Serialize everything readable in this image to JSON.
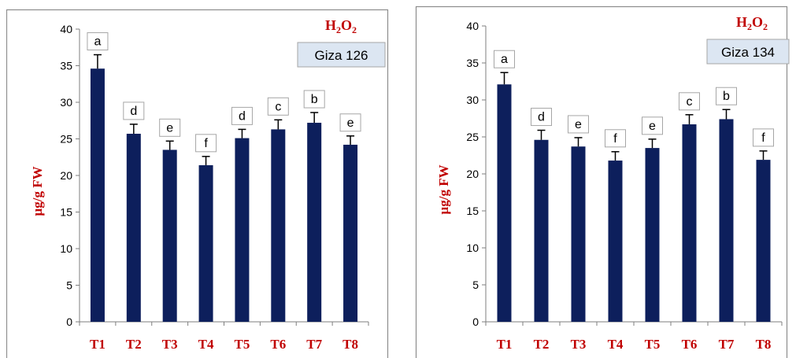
{
  "colors": {
    "bar": "#0d1f5c",
    "accent": "#c00000",
    "badge_bg": "#dce6f2"
  },
  "chart_data": [
    {
      "type": "bar",
      "title": "H2O2",
      "subtitle": "Giza 126",
      "ylabel": "µg/g FW",
      "xlabel": "",
      "ylim": [
        0,
        40
      ],
      "yticks": [
        0,
        5,
        10,
        15,
        20,
        25,
        30,
        35,
        40
      ],
      "categories": [
        "T1",
        "T2",
        "T3",
        "T4",
        "T5",
        "T6",
        "T7",
        "T8"
      ],
      "values": [
        34.6,
        25.7,
        23.5,
        21.4,
        25.1,
        26.3,
        27.2,
        24.2
      ],
      "errors": [
        1.9,
        1.3,
        1.2,
        1.2,
        1.2,
        1.3,
        1.4,
        1.2
      ],
      "letters": [
        "a",
        "d",
        "e",
        "f",
        "d",
        "c",
        "b",
        "e"
      ]
    },
    {
      "type": "bar",
      "title": "H2O2",
      "subtitle": "Giza 134",
      "ylabel": "µg/g FW",
      "xlabel": "",
      "ylim": [
        0,
        40
      ],
      "yticks": [
        0,
        5,
        10,
        15,
        20,
        25,
        30,
        35,
        40
      ],
      "categories": [
        "T1",
        "T2",
        "T3",
        "T4",
        "T5",
        "T6",
        "T7",
        "T8"
      ],
      "values": [
        32.1,
        24.6,
        23.7,
        21.8,
        23.5,
        26.7,
        27.4,
        21.9
      ],
      "errors": [
        1.6,
        1.3,
        1.2,
        1.2,
        1.2,
        1.3,
        1.3,
        1.2
      ],
      "letters": [
        "a",
        "d",
        "e",
        "f",
        "e",
        "c",
        "b",
        "f"
      ]
    }
  ]
}
